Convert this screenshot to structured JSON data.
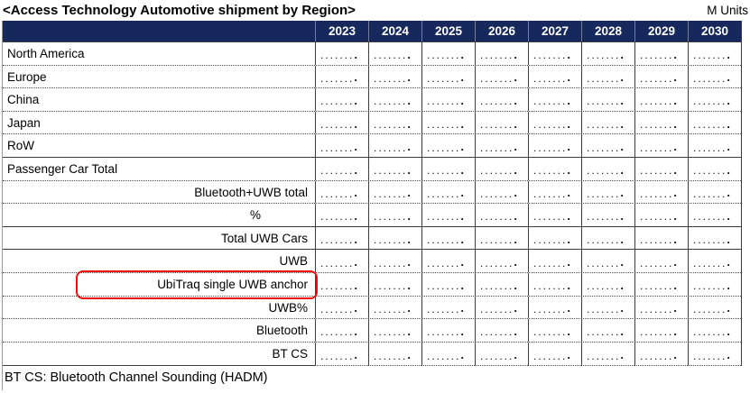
{
  "title": "<Access Technology Automotive shipment by Region>",
  "units_label": "M Units",
  "footer_note": "BT CS: Bluetooth Channel Sounding (HADM)",
  "columns": [
    "2023",
    "2024",
    "2025",
    "2026",
    "2027",
    "2028",
    "2029",
    "2030"
  ],
  "cell_dots": ".......",
  "cell_dots_end": ".",
  "rows": [
    {
      "key": "north-america",
      "label": "North America",
      "align": "left",
      "sep": "dotted",
      "highlighted": false
    },
    {
      "key": "europe",
      "label": "Europe",
      "align": "left",
      "sep": "dotted",
      "highlighted": false
    },
    {
      "key": "china",
      "label": "China",
      "align": "left",
      "sep": "dotted",
      "highlighted": false
    },
    {
      "key": "japan",
      "label": "Japan",
      "align": "left",
      "sep": "dotted",
      "highlighted": false
    },
    {
      "key": "row",
      "label": "RoW",
      "align": "left",
      "sep": "solid",
      "highlighted": false
    },
    {
      "key": "passenger-car-total",
      "label": "Passenger Car Total",
      "align": "left",
      "sep": "dotted",
      "highlighted": false
    },
    {
      "key": "bluetooth-uwb-total",
      "label": "Bluetooth+UWB total",
      "align": "right",
      "sep": "dotted",
      "highlighted": false
    },
    {
      "key": "percent",
      "label": "%",
      "align": "right-indent",
      "sep": "solid",
      "highlighted": false
    },
    {
      "key": "total-uwb-cars",
      "label": "Total UWB Cars",
      "align": "right",
      "sep": "solid",
      "highlighted": false
    },
    {
      "key": "uwb",
      "label": "UWB",
      "align": "right",
      "sep": "dotted",
      "highlighted": false
    },
    {
      "key": "ubitraq-single-uwb-anchor",
      "label": "UbiTraq single UWB anchor",
      "align": "right",
      "sep": "dotted",
      "highlighted": true
    },
    {
      "key": "uwb-percent",
      "label": "UWB%",
      "align": "right",
      "sep": "dotted",
      "highlighted": false
    },
    {
      "key": "bluetooth",
      "label": "Bluetooth",
      "align": "right",
      "sep": "dotted",
      "highlighted": false
    },
    {
      "key": "bt-cs",
      "label": "BT CS",
      "align": "right",
      "sep": "mixed",
      "highlighted": false
    }
  ],
  "colors": {
    "header_bg": "#17295c",
    "header_text": "#ffffff",
    "grid_line": "#3c3c3c",
    "dotted_line": "#4a4a4a",
    "highlight_border": "#f20d0d"
  }
}
